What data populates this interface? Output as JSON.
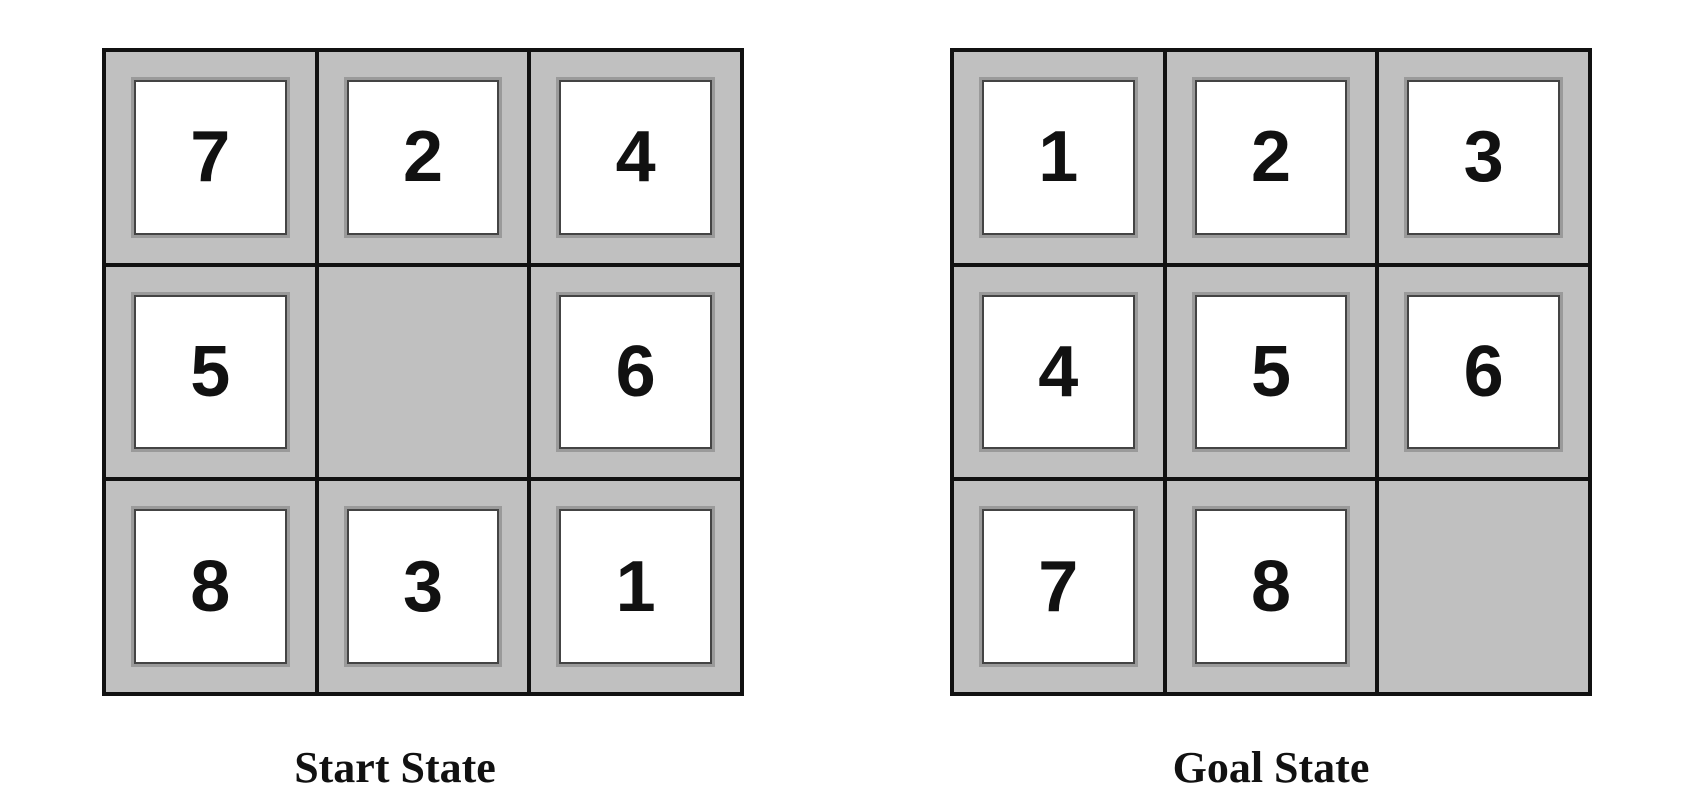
{
  "start_state": {
    "caption": "Start State",
    "tiles": [
      [
        "7",
        "2",
        "4"
      ],
      [
        "5",
        "",
        "6"
      ],
      [
        "8",
        "3",
        "1"
      ]
    ]
  },
  "goal_state": {
    "caption": "Goal State",
    "tiles": [
      [
        "1",
        "2",
        "3"
      ],
      [
        "4",
        "5",
        "6"
      ],
      [
        "7",
        "8",
        ""
      ]
    ]
  }
}
